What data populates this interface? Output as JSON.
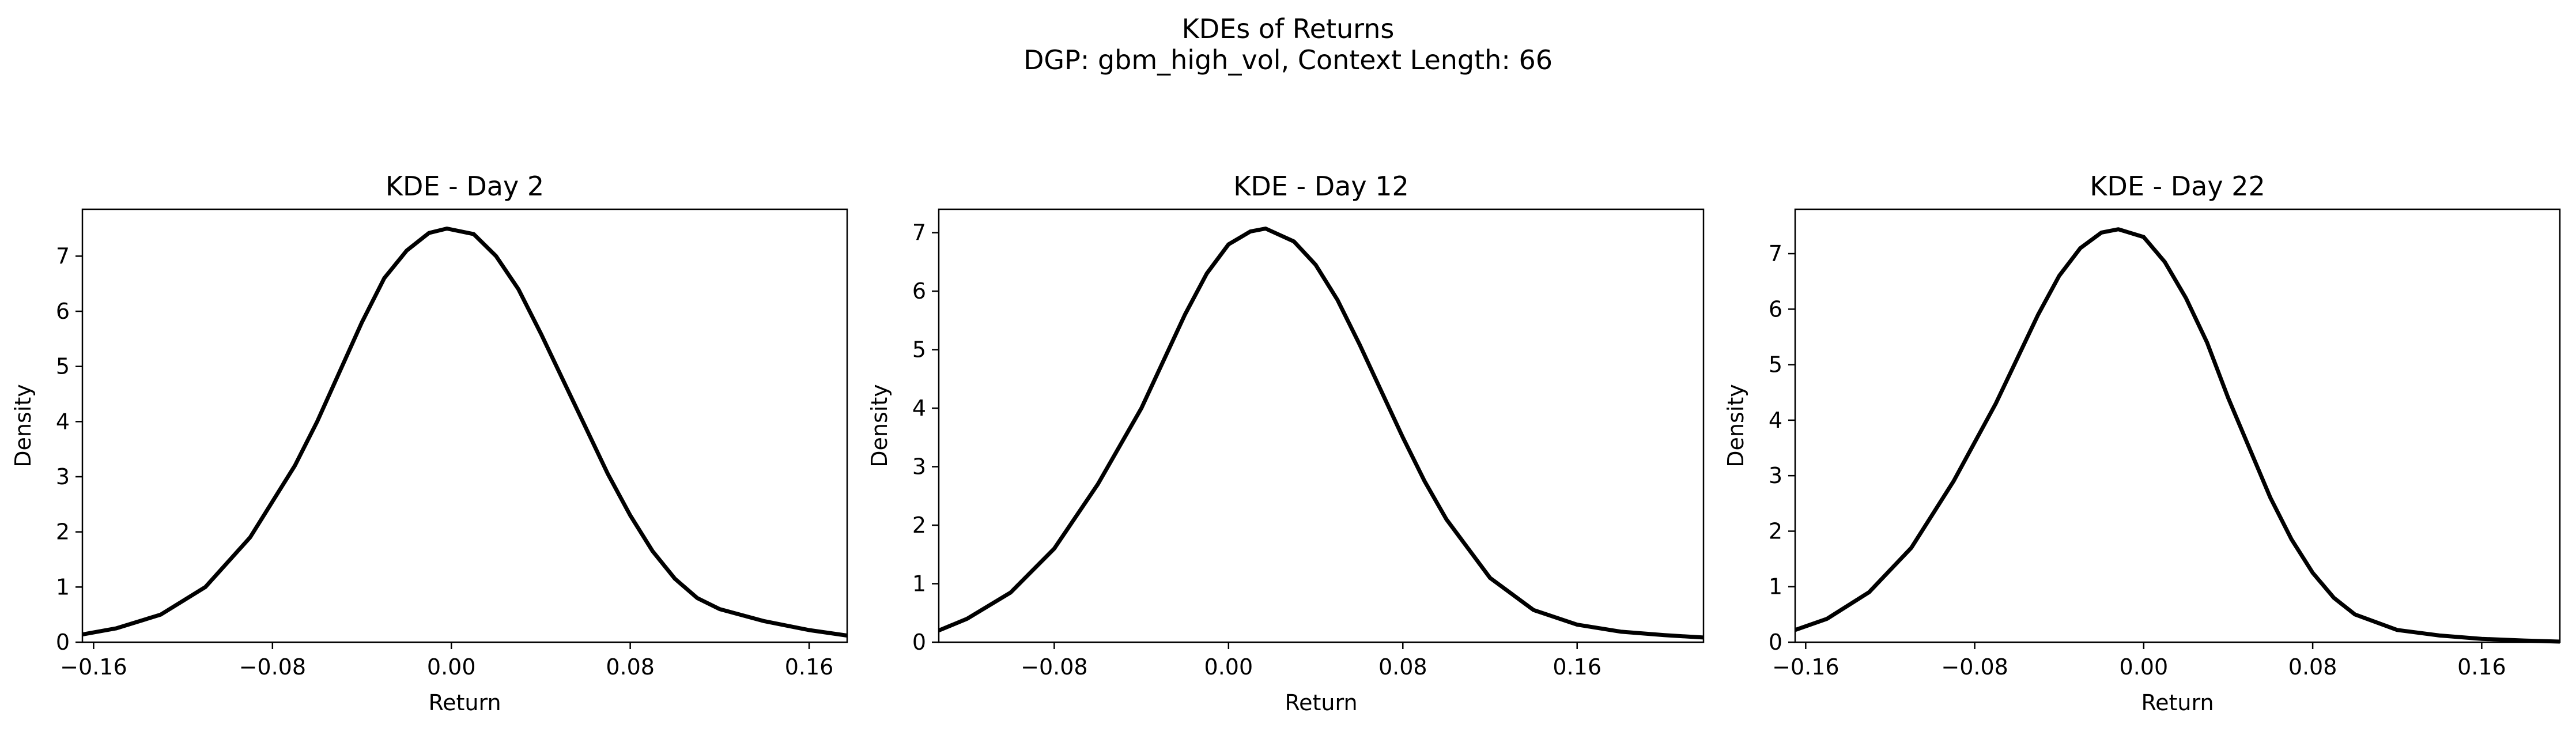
{
  "figure": {
    "title": "KDEs of Returns",
    "subtitle": "DGP: gbm_high_vol, Context Length: 66"
  },
  "chart_data": [
    {
      "type": "line",
      "title": "KDE - Day 2",
      "xlabel": "Return",
      "ylabel": "Density",
      "xlim": [
        -0.165,
        0.177
      ],
      "ylim": [
        0,
        7.85
      ],
      "xticks": [
        -0.16,
        -0.08,
        0.0,
        0.08,
        0.16
      ],
      "xtick_labels": [
        "−0.16",
        "−0.08",
        "0.00",
        "0.08",
        "0.16"
      ],
      "yticks": [
        0,
        1,
        2,
        3,
        4,
        5,
        6,
        7
      ],
      "grid": false,
      "series": [
        {
          "color": "#000000",
          "x": [
            -0.165,
            -0.15,
            -0.13,
            -0.11,
            -0.09,
            -0.07,
            -0.06,
            -0.05,
            -0.04,
            -0.03,
            -0.02,
            -0.01,
            -0.002,
            0.01,
            0.02,
            0.03,
            0.04,
            0.05,
            0.06,
            0.07,
            0.08,
            0.09,
            0.1,
            0.11,
            0.12,
            0.14,
            0.16,
            0.177
          ],
          "y": [
            0.14,
            0.25,
            0.5,
            1.0,
            1.9,
            3.2,
            4.0,
            4.9,
            5.8,
            6.6,
            7.1,
            7.42,
            7.5,
            7.4,
            7.0,
            6.4,
            5.6,
            4.75,
            3.9,
            3.05,
            2.3,
            1.65,
            1.15,
            0.8,
            0.6,
            0.38,
            0.22,
            0.12
          ]
        }
      ]
    },
    {
      "type": "line",
      "title": "KDE - Day 12",
      "xlabel": "Return",
      "ylabel": "Density",
      "xlim": [
        -0.133,
        0.218
      ],
      "ylim": [
        0,
        7.4
      ],
      "xticks": [
        -0.08,
        0.0,
        0.08,
        0.16
      ],
      "xtick_labels": [
        "−0.08",
        "0.00",
        "0.08",
        "0.16"
      ],
      "yticks": [
        0,
        1,
        2,
        3,
        4,
        5,
        6,
        7
      ],
      "grid": false,
      "series": [
        {
          "color": "#000000",
          "x": [
            -0.133,
            -0.12,
            -0.1,
            -0.08,
            -0.06,
            -0.04,
            -0.03,
            -0.02,
            -0.01,
            0.0,
            0.01,
            0.017,
            0.03,
            0.04,
            0.05,
            0.06,
            0.07,
            0.08,
            0.09,
            0.1,
            0.12,
            0.14,
            0.16,
            0.18,
            0.2,
            0.218
          ],
          "y": [
            0.2,
            0.4,
            0.85,
            1.6,
            2.7,
            4.0,
            4.8,
            5.6,
            6.3,
            6.8,
            7.02,
            7.07,
            6.85,
            6.45,
            5.85,
            5.1,
            4.3,
            3.5,
            2.75,
            2.1,
            1.1,
            0.55,
            0.3,
            0.18,
            0.12,
            0.08
          ]
        }
      ]
    },
    {
      "type": "line",
      "title": "KDE - Day 22",
      "xlabel": "Return",
      "ylabel": "Density",
      "xlim": [
        -0.165,
        0.197
      ],
      "ylim": [
        0,
        7.8
      ],
      "xticks": [
        -0.16,
        -0.08,
        0.0,
        0.08,
        0.16
      ],
      "xtick_labels": [
        "−0.16",
        "−0.08",
        "0.00",
        "0.08",
        "0.16"
      ],
      "yticks": [
        0,
        1,
        2,
        3,
        4,
        5,
        6,
        7
      ],
      "grid": false,
      "series": [
        {
          "color": "#000000",
          "x": [
            -0.165,
            -0.15,
            -0.13,
            -0.11,
            -0.09,
            -0.07,
            -0.06,
            -0.05,
            -0.04,
            -0.03,
            -0.02,
            -0.012,
            0.0,
            0.01,
            0.02,
            0.03,
            0.04,
            0.05,
            0.06,
            0.07,
            0.08,
            0.09,
            0.1,
            0.12,
            0.14,
            0.16,
            0.18,
            0.197
          ],
          "y": [
            0.22,
            0.42,
            0.9,
            1.7,
            2.9,
            4.3,
            5.1,
            5.9,
            6.6,
            7.1,
            7.38,
            7.44,
            7.3,
            6.85,
            6.2,
            5.4,
            4.4,
            3.5,
            2.6,
            1.85,
            1.25,
            0.8,
            0.5,
            0.22,
            0.12,
            0.06,
            0.03,
            0.01
          ]
        }
      ]
    }
  ]
}
